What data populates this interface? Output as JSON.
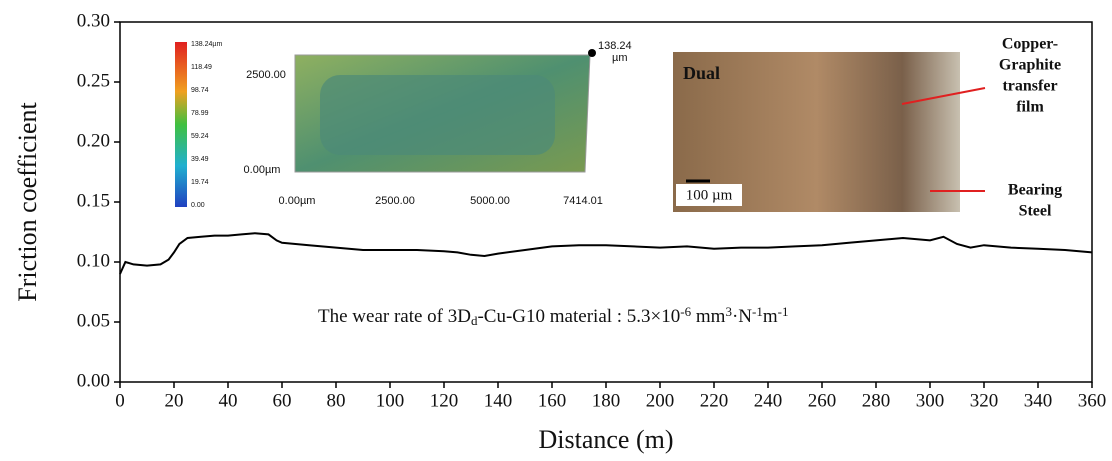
{
  "chart_data": {
    "type": "line",
    "xlabel": "Distance (m)",
    "ylabel": "Friction coefficient",
    "x": [
      0,
      2,
      5,
      10,
      15,
      18,
      20,
      22,
      25,
      30,
      35,
      40,
      45,
      50,
      55,
      58,
      60,
      65,
      70,
      80,
      90,
      100,
      110,
      120,
      125,
      130,
      135,
      140,
      150,
      160,
      170,
      180,
      190,
      200,
      210,
      220,
      230,
      240,
      250,
      260,
      270,
      280,
      290,
      300,
      305,
      310,
      315,
      320,
      330,
      340,
      350,
      360
    ],
    "values": [
      0.09,
      0.1,
      0.098,
      0.097,
      0.098,
      0.102,
      0.108,
      0.115,
      0.12,
      0.121,
      0.122,
      0.122,
      0.123,
      0.124,
      0.123,
      0.118,
      0.116,
      0.115,
      0.114,
      0.112,
      0.11,
      0.11,
      0.11,
      0.109,
      0.108,
      0.106,
      0.105,
      0.107,
      0.11,
      0.113,
      0.114,
      0.114,
      0.113,
      0.112,
      0.113,
      0.111,
      0.112,
      0.112,
      0.113,
      0.114,
      0.116,
      0.118,
      0.12,
      0.118,
      0.121,
      0.115,
      0.112,
      0.114,
      0.112,
      0.111,
      0.11,
      0.108
    ],
    "color": "#000000",
    "xlim": [
      0,
      360
    ],
    "xticks": [
      0,
      20,
      40,
      60,
      80,
      100,
      120,
      140,
      160,
      180,
      200,
      220,
      240,
      260,
      280,
      300,
      320,
      340,
      360
    ],
    "ylim": [
      0,
      0.3
    ],
    "yticks": [
      {
        "value": 0,
        "label": "0.00"
      },
      {
        "value": 0.05,
        "label": "0.05"
      },
      {
        "value": 0.1,
        "label": "0.10"
      },
      {
        "value": 0.15,
        "label": "0.15"
      },
      {
        "value": 0.2,
        "label": "0.20"
      },
      {
        "value": 0.25,
        "label": "0.25"
      },
      {
        "value": 0.3,
        "label": "0.30"
      }
    ],
    "annotation": [
      {
        "text": "The wear rate of 3D"
      },
      {
        "sub": "d"
      },
      {
        "text": "-Cu-G10 material : 5.3×10"
      },
      {
        "sup": "-6"
      },
      {
        "text": " mm"
      },
      {
        "sup": "3"
      },
      {
        "text": "·N"
      },
      {
        "sup": "-1"
      },
      {
        "text": "m"
      },
      {
        "sup": "-1"
      }
    ]
  },
  "insets": {
    "colorbar": [
      "138.24µm",
      "118.49",
      "98.74",
      "78.99",
      "59.24",
      "39.49",
      "19.74",
      "0.00"
    ],
    "topography": {
      "y_labels": [
        "2500.00",
        "0.00µm"
      ],
      "x_labels": [
        "0.00µm",
        "2500.00",
        "5000.00",
        "7414.01"
      ],
      "peak": [
        "138.24",
        "µm"
      ]
    },
    "micrograph": {
      "title": "Dual",
      "scale": "100 µm",
      "film": [
        "Copper-",
        "Graphite",
        "transfer",
        "film"
      ],
      "steel": [
        "Bearing",
        "Steel"
      ]
    }
  }
}
